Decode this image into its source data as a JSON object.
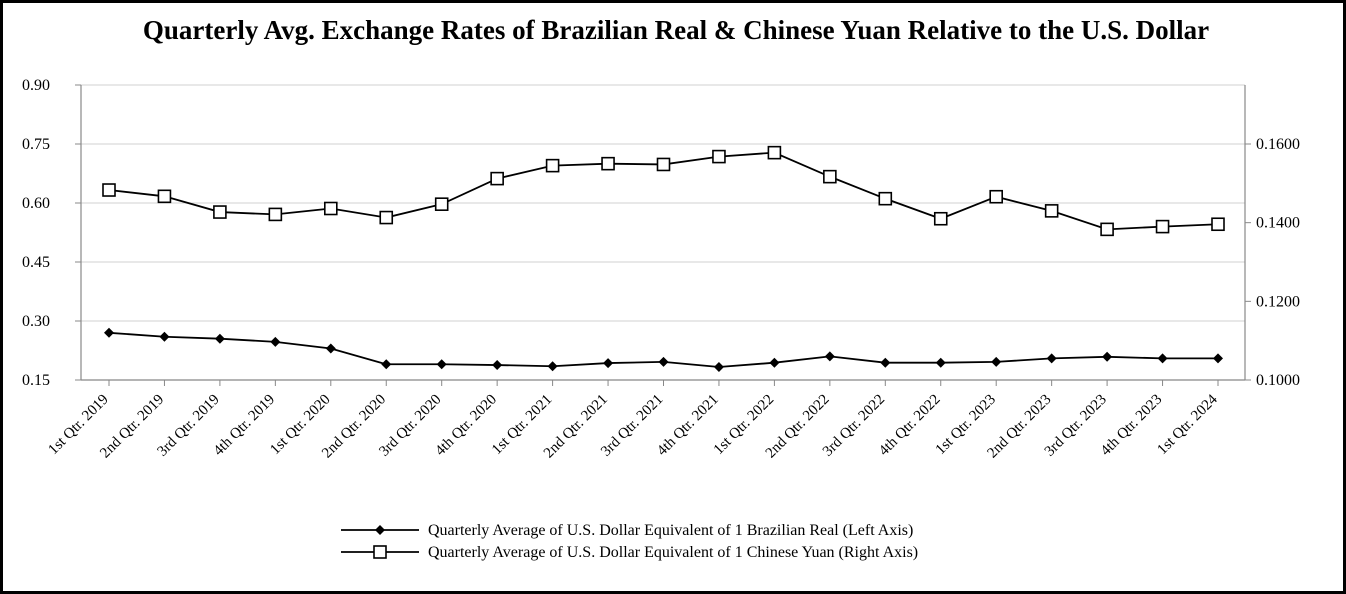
{
  "chart_data": {
    "type": "line",
    "title": "Quarterly Avg. Exchange Rates of Brazilian Real & Chinese Yuan Relative to the U.S. Dollar",
    "categories": [
      "1st Qtr. 2019",
      "2nd Qtr. 2019",
      "3rd Qtr. 2019",
      "4th Qtr. 2019",
      "1st Qtr. 2020",
      "2nd Qtr. 2020",
      "3rd Qtr. 2020",
      "4th Qtr. 2020",
      "1st Qtr. 2021",
      "2nd Qtr. 2021",
      "3rd Qtr. 2021",
      "4th Qtr. 2021",
      "1st Qtr. 2022",
      "2nd Qtr. 2022",
      "3rd Qtr. 2022",
      "4th Qtr. 2022",
      "1st Qtr. 2023",
      "2nd Qtr. 2023",
      "3rd Qtr. 2023",
      "4th Qtr. 2023",
      "1st Qtr. 2024"
    ],
    "left_axis": {
      "ylim": [
        0.15,
        0.9
      ],
      "ticks": [
        "0.15",
        "0.30",
        "0.45",
        "0.60",
        "0.75",
        "0.90"
      ],
      "tick_values": [
        0.15,
        0.3,
        0.45,
        0.6,
        0.75,
        0.9
      ]
    },
    "right_axis": {
      "ylim": [
        0.1,
        0.175
      ],
      "ticks": [
        "0.1000",
        "0.1200",
        "0.1400",
        "0.1600"
      ],
      "tick_values": [
        0.1,
        0.12,
        0.14,
        0.16
      ]
    },
    "grid": true,
    "legend_position": "bottom",
    "series": [
      {
        "name": "Quarterly Average of U.S. Dollar Equivalent of 1 Brazilian Real (Left Axis)",
        "axis": "left",
        "marker": "filled-diamond",
        "values": [
          0.27,
          0.26,
          0.255,
          0.247,
          0.23,
          0.19,
          0.19,
          0.188,
          0.185,
          0.193,
          0.196,
          0.183,
          0.194,
          0.21,
          0.194,
          0.194,
          0.196,
          0.205,
          0.209,
          0.205,
          0.205
        ]
      },
      {
        "name": "Quarterly Average of U.S. Dollar Equivalent of 1 Chinese Yuan (Right Axis)",
        "axis": "right",
        "marker": "open-square",
        "values": [
          0.1483,
          0.1467,
          0.1427,
          0.1421,
          0.1436,
          0.1413,
          0.1447,
          0.1512,
          0.1545,
          0.155,
          0.1548,
          0.1568,
          0.1578,
          0.1517,
          0.1461,
          0.141,
          0.1466,
          0.143,
          0.1383,
          0.139,
          0.1396
        ]
      }
    ]
  }
}
